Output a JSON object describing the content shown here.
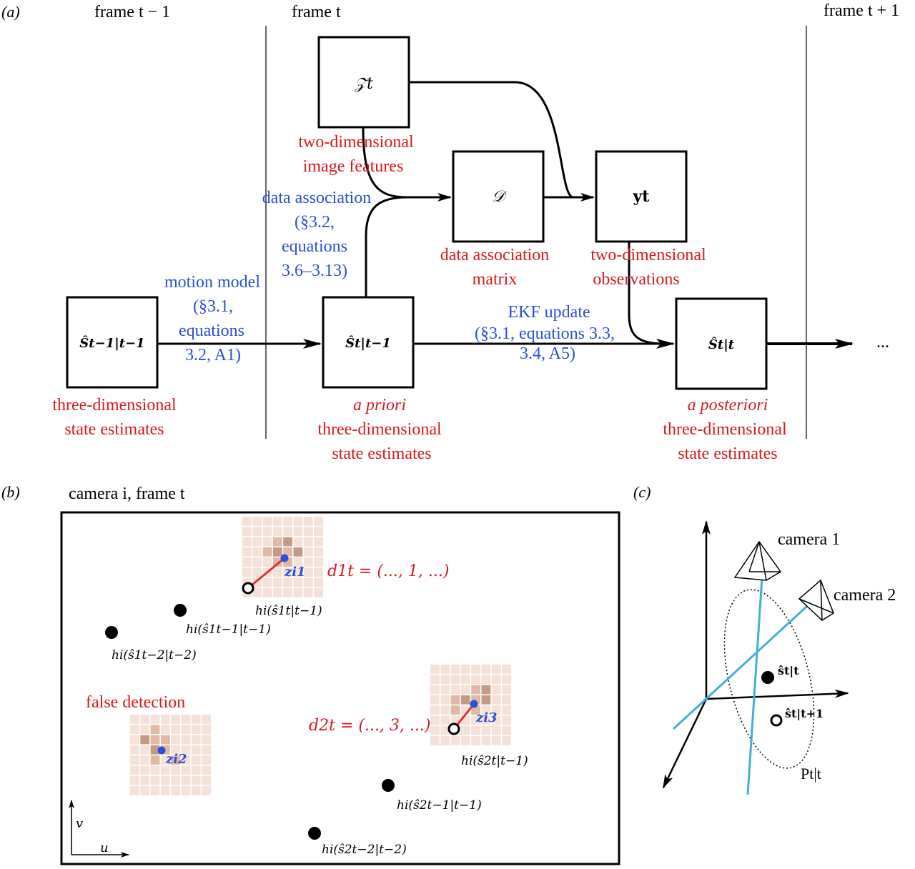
{
  "colors": {
    "red": "#d7191c",
    "blue": "#2b4fd6",
    "cyan": "#3fb0d6",
    "black": "#000000",
    "grid_dark": "#c59a84",
    "grid_mid": "#dfb8a6",
    "grid_light": "#f4e1d8"
  },
  "panel_a": {
    "label": "(a)",
    "frames": [
      "frame t − 1",
      "frame t",
      "frame t + 1"
    ],
    "ellipsis": "...",
    "boxes": {
      "z": "𝒵t",
      "d": "𝒟",
      "y": "yt",
      "s_prev": "Ŝt−1|t−1",
      "s_prior": "Ŝt|t−1",
      "s_post": "Ŝt|t"
    },
    "red_captions": {
      "features": [
        "two-dimensional",
        "image features"
      ],
      "matrix": [
        "data association",
        "matrix"
      ],
      "observations": [
        "two-dimensional",
        "observations"
      ],
      "state_prev": [
        "three-dimensional",
        "state estimates"
      ],
      "state_prior": [
        "a priori",
        "three-dimensional",
        "state estimates"
      ],
      "state_post": [
        "a posteriori",
        "three-dimensional",
        "state estimates"
      ]
    },
    "blue_captions": {
      "association": [
        "data association",
        "(§3.2,",
        "equations",
        "3.6–3.13)"
      ],
      "motion": [
        "motion model",
        "(§3.1,",
        "equations",
        "3.2, A1)"
      ],
      "ekf": [
        "EKF update",
        "(§3.1, equations 3.3,",
        "3.4, A5)"
      ]
    }
  },
  "panel_b": {
    "label": "(b)",
    "title": "camera i, frame t",
    "false_detection": "false detection",
    "d1": "d1t = (..., 1, ...)",
    "d2": "d2t = (..., 3, ...)",
    "z1": "zi1",
    "z2": "zi2",
    "z3": "zi3",
    "h_prior_1": "hi(ŝ1t|t−1)",
    "h_prev_1": "hi(ŝ1t−1|t−1)",
    "h_prev2_1": "hi(ŝ1t−2|t−2)",
    "h_prior_2": "hi(ŝ2t|t−1)",
    "h_prev_2": "hi(ŝ2t−1|t−1)",
    "h_prev2_2": "hi(ŝ2t−2|t−2)",
    "axis_u": "u",
    "axis_v": "v"
  },
  "panel_c": {
    "label": "(c)",
    "camera1": "camera 1",
    "camera2": "camera 2",
    "s_tt": "ŝt|t",
    "s_tt1": "ŝt|t+1",
    "cov": "Pt|t"
  }
}
